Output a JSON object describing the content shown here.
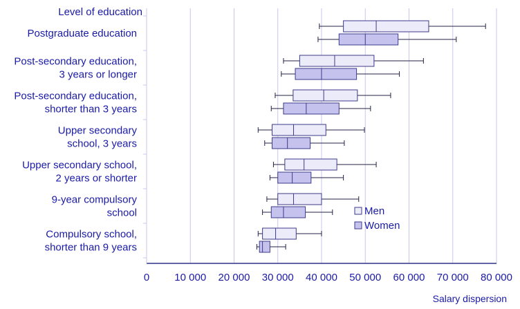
{
  "colors": {
    "text": "#1a1aa6",
    "grid": "#c9c6ec",
    "axis": "#2e2e8c",
    "box_stroke": "#3a3a8a",
    "men_fill": "#ecebfa",
    "women_fill": "#c6c2ee",
    "whisker": "#222244"
  },
  "chart_data": {
    "type": "boxplot",
    "title": "",
    "ylabel": "Level of education",
    "xlabel": "Salary dispersion",
    "xlim": [
      0,
      80000
    ],
    "x_ticks": [
      0,
      10000,
      20000,
      30000,
      40000,
      50000,
      60000,
      70000,
      80000
    ],
    "x_tick_labels": [
      "0",
      "10 000",
      "20 000",
      "30 000",
      "40 000",
      "50 000",
      "60 000",
      "70 000",
      "80 000"
    ],
    "grid": true,
    "legend_position": "lower-right",
    "legend": [
      {
        "name": "Men",
        "key": "men"
      },
      {
        "name": "Women",
        "key": "women"
      }
    ],
    "categories": [
      {
        "label": [
          "Postgraduate education"
        ],
        "men": {
          "min": 39500,
          "q1": 45000,
          "median": 52500,
          "q3": 64500,
          "max": 77500
        },
        "women": {
          "min": 39200,
          "q1": 44000,
          "median": 50000,
          "q3": 57500,
          "max": 70800
        }
      },
      {
        "label": [
          "Post-secondary education,",
          "3 years or longer"
        ],
        "men": {
          "min": 31300,
          "q1": 35000,
          "median": 43000,
          "q3": 52000,
          "max": 63300
        },
        "women": {
          "min": 30800,
          "q1": 34000,
          "median": 40000,
          "q3": 48000,
          "max": 57800
        }
      },
      {
        "label": [
          "Post-secondary education,",
          "shorter than 3 years"
        ],
        "men": {
          "min": 29400,
          "q1": 33500,
          "median": 40500,
          "q3": 48200,
          "max": 55800
        },
        "women": {
          "min": 28500,
          "q1": 31300,
          "median": 36500,
          "q3": 44000,
          "max": 51200
        }
      },
      {
        "label": [
          "Upper secondary",
          "school, 3 years"
        ],
        "men": {
          "min": 25500,
          "q1": 28700,
          "median": 33600,
          "q3": 41000,
          "max": 49800
        },
        "women": {
          "min": 27000,
          "q1": 28700,
          "median": 32200,
          "q3": 37400,
          "max": 45200
        }
      },
      {
        "label": [
          "Upper secondary school,",
          "2 years or shorter"
        ],
        "men": {
          "min": 29000,
          "q1": 31600,
          "median": 36000,
          "q3": 43500,
          "max": 52500
        },
        "women": {
          "min": 28200,
          "q1": 30000,
          "median": 33300,
          "q3": 37600,
          "max": 45000
        }
      },
      {
        "label": [
          "9-year compulsory",
          "school"
        ],
        "men": {
          "min": 27500,
          "q1": 30000,
          "median": 33600,
          "q3": 40000,
          "max": 48500
        },
        "women": {
          "min": 26500,
          "q1": 28500,
          "median": 31300,
          "q3": 36300,
          "max": 42500
        }
      },
      {
        "label": [
          "Compulsory school,",
          "shorter than 9 years"
        ],
        "men": {
          "min": 25500,
          "q1": 26500,
          "median": 29500,
          "q3": 34200,
          "max": 40000
        },
        "women": {
          "min": 25200,
          "q1": 25800,
          "median": 26500,
          "q3": 28200,
          "max": 31800
        }
      }
    ]
  }
}
